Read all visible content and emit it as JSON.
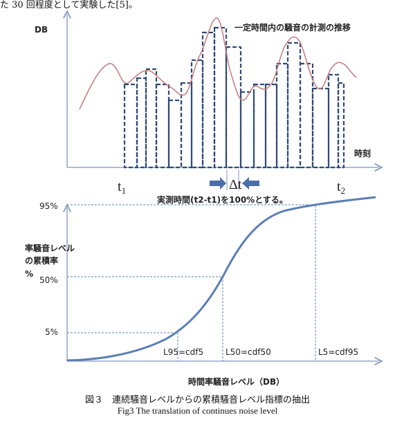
{
  "top_fragment": "た 30 回程度として実験した[5]。",
  "upper_chart": {
    "y_axis_label": "DB",
    "x_axis_label": "時刻",
    "series_label": "一定時間内の騒音の計測の推移",
    "t1_label": "t",
    "t1_sub": "1",
    "t2_label": "t",
    "t2_sub": "2",
    "delta_t_label": "Δt",
    "note": "実測時間(t2-t1)を100%とする。",
    "colors": {
      "curve": "#c87878",
      "bars": "#2e4a78",
      "axes": "#7c95bd",
      "arrows": "#4a6fa8"
    }
  },
  "lower_chart": {
    "y_axis_label_line1": "率騒音レベル",
    "y_axis_label_line2": "の累積率",
    "y_axis_label_line3": "%",
    "x_axis_label": "時間率騒音レベル（DB）",
    "y_ticks": [
      "95%",
      "50%",
      "5%"
    ],
    "markers": [
      "L95=cdf5",
      "L50=cdf50",
      "L5=cdf95"
    ],
    "colors": {
      "curve": "#5a7fb5",
      "guides": "#5a7fb5",
      "axes": "#7c95bd"
    }
  },
  "caption_jp": "図３　連続騒音レベルからの累積騒音レベル指標の抽出",
  "caption_en": "Fig3 The translation of continues noise level"
}
